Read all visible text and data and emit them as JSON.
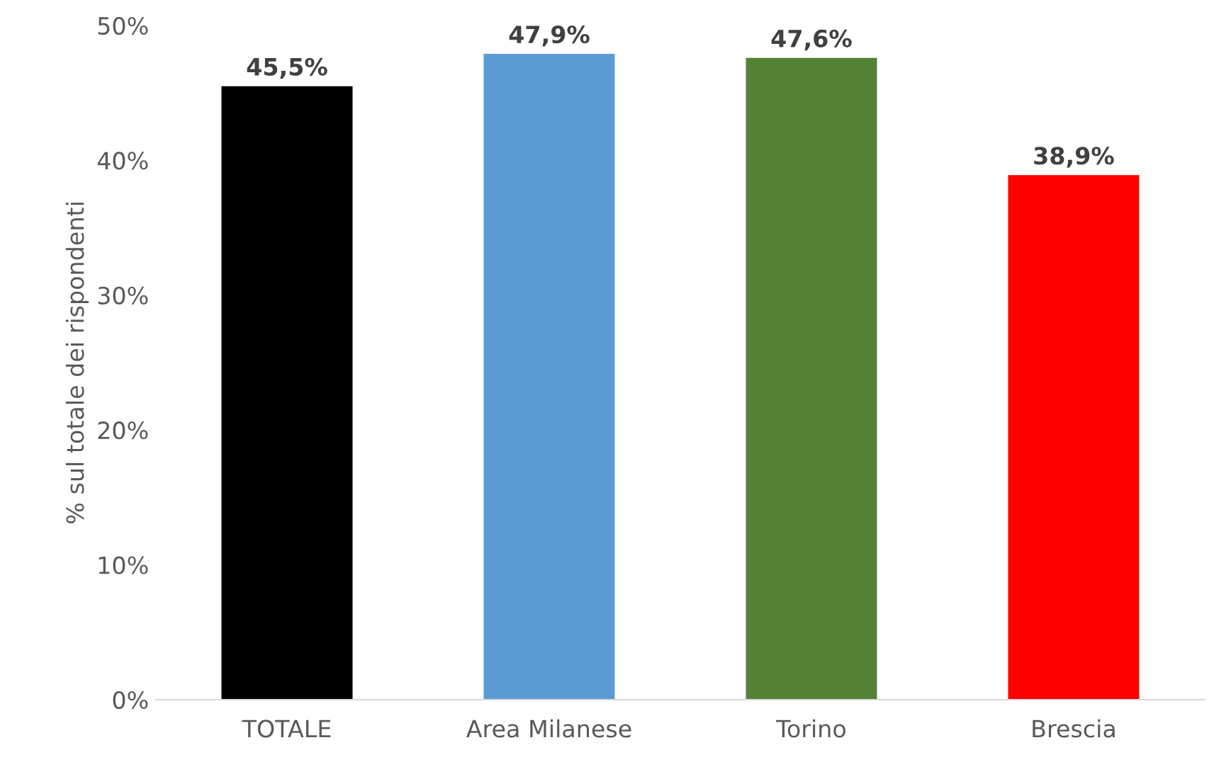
{
  "chart_data": {
    "type": "bar",
    "ylabel": "% sul totale dei rispondenti",
    "categories": [
      "TOTALE",
      "Area Milanese",
      "Torino",
      "Brescia"
    ],
    "values": [
      45.5,
      47.9,
      47.6,
      38.9
    ],
    "colors": [
      "#000000",
      "#5b9bd5",
      "#548235",
      "#ff0000"
    ],
    "value_labels": [
      "45,5%",
      "47,9%",
      "47,6%",
      "38,9%"
    ],
    "ylim": [
      0,
      50
    ],
    "yticks": [
      {
        "value": 0,
        "label": "0%"
      },
      {
        "value": 10,
        "label": "10%"
      },
      {
        "value": 20,
        "label": "20%"
      },
      {
        "value": 30,
        "label": "30%"
      },
      {
        "value": 40,
        "label": "40%"
      },
      {
        "value": 50,
        "label": "50%"
      }
    ],
    "grid": false,
    "legend": false
  }
}
